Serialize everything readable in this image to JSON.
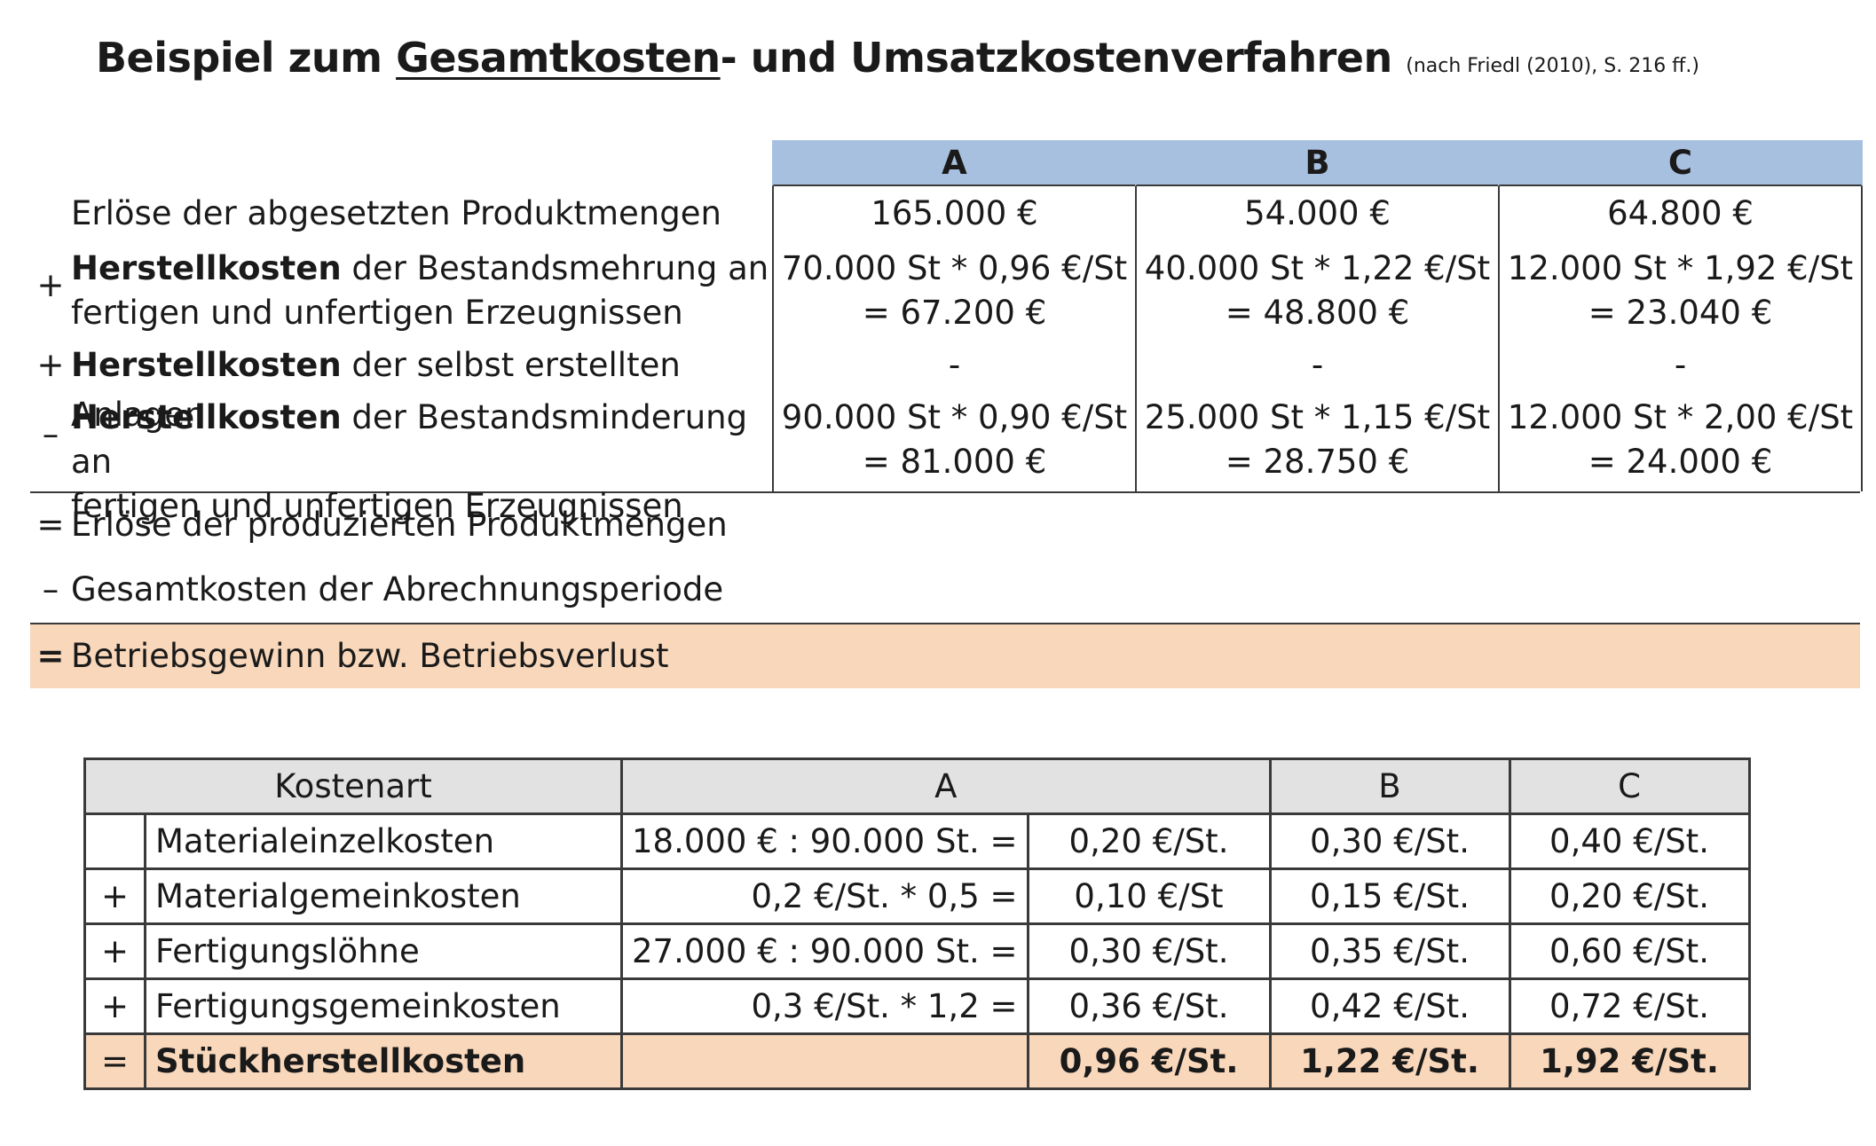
{
  "title": {
    "pre": "Beispiel zum ",
    "underlined": "Gesamtkosten",
    "post": "- und Umsatzkostenverfahren",
    "source": "(nach Friedl (2010), S. 216 ff.)"
  },
  "calc_table": {
    "headers": [
      "A",
      "B",
      "C"
    ],
    "rows": [
      {
        "sym": "",
        "bold": "",
        "label1": "Erlöse der abgesetzten Produktmengen",
        "label2": "",
        "cells": [
          [
            "165.000 €",
            ""
          ],
          [
            "54.000 €",
            ""
          ],
          [
            "64.800 €",
            ""
          ]
        ]
      },
      {
        "sym": "+",
        "bold": "Herstellkosten",
        "label1": " der Bestandsmehrung an",
        "label2": "fertigen und unfertigen Erzeugnissen",
        "cells": [
          [
            "70.000 St * 0,96 €/St",
            "= 67.200 €"
          ],
          [
            "40.000 St * 1,22 €/St",
            "= 48.800 €"
          ],
          [
            "12.000 St * 1,92 €/St",
            "= 23.040 €"
          ]
        ]
      },
      {
        "sym": "+",
        "bold": "Herstellkosten",
        "label1": " der selbst erstellten Anlagen",
        "label2": "",
        "cells": [
          [
            "-",
            ""
          ],
          [
            "-",
            ""
          ],
          [
            "-",
            ""
          ]
        ]
      },
      {
        "sym": "–",
        "bold": "Herstellkosten",
        "label1": " der Bestandsminderung an",
        "label2": "fertigen und unfertigen Erzeugnissen",
        "cells": [
          [
            "90.000 St * 0,90 €/St",
            "= 81.000 €"
          ],
          [
            "25.000 St * 1,15 €/St",
            "= 28.750 €"
          ],
          [
            "12.000 St * 2,00 €/St",
            "= 24.000 €"
          ]
        ]
      },
      {
        "sym": "=",
        "bold": "",
        "label1": "Erlöse der produzierten Produktmengen",
        "label2": ""
      },
      {
        "sym": "–",
        "bold": "",
        "label1": "Gesamtkosten der Abrechnungsperiode",
        "label2": ""
      },
      {
        "sym": "=",
        "bold": "",
        "label1": "Betriebsgewinn bzw. Betriebsverlust",
        "label2": ""
      }
    ]
  },
  "cost_table": {
    "headers": [
      "Kostenart",
      "A",
      "B",
      "C"
    ],
    "rows": [
      {
        "op": "",
        "name": "Materialeinzelkosten",
        "calcA": "18.000 € : 90.000 St. =",
        "A": "0,20 €/St.",
        "B": "0,30 €/St.",
        "C": "0,40 €/St."
      },
      {
        "op": "+",
        "name": "Materialgemeinkosten",
        "calcA": "0,2 €/St. * 0,5 =",
        "A": "0,10 €/St",
        "B": "0,15 €/St.",
        "C": "0,20 €/St."
      },
      {
        "op": "+",
        "name": "Fertigungslöhne",
        "calcA": "27.000 € : 90.000 St. =",
        "A": "0,30 €/St.",
        "B": "0,35 €/St.",
        "C": "0,60 €/St."
      },
      {
        "op": "+",
        "name": "Fertigungsgemeinkosten",
        "calcA": "0,3 €/St. *  1,2 =",
        "A": "0,36 €/St.",
        "B": "0,42 €/St.",
        "C": "0,72 €/St."
      },
      {
        "op": "=",
        "name": "Stückherstellkosten",
        "calcA": "",
        "A": "0,96 €/St.",
        "B": "1,22 €/St.",
        "C": "1,92 €/St."
      }
    ]
  },
  "colors": {
    "header_blue": "#a8c0df",
    "highlight_peach": "#f8d7bb",
    "header_grey": "#e2e2e2"
  }
}
